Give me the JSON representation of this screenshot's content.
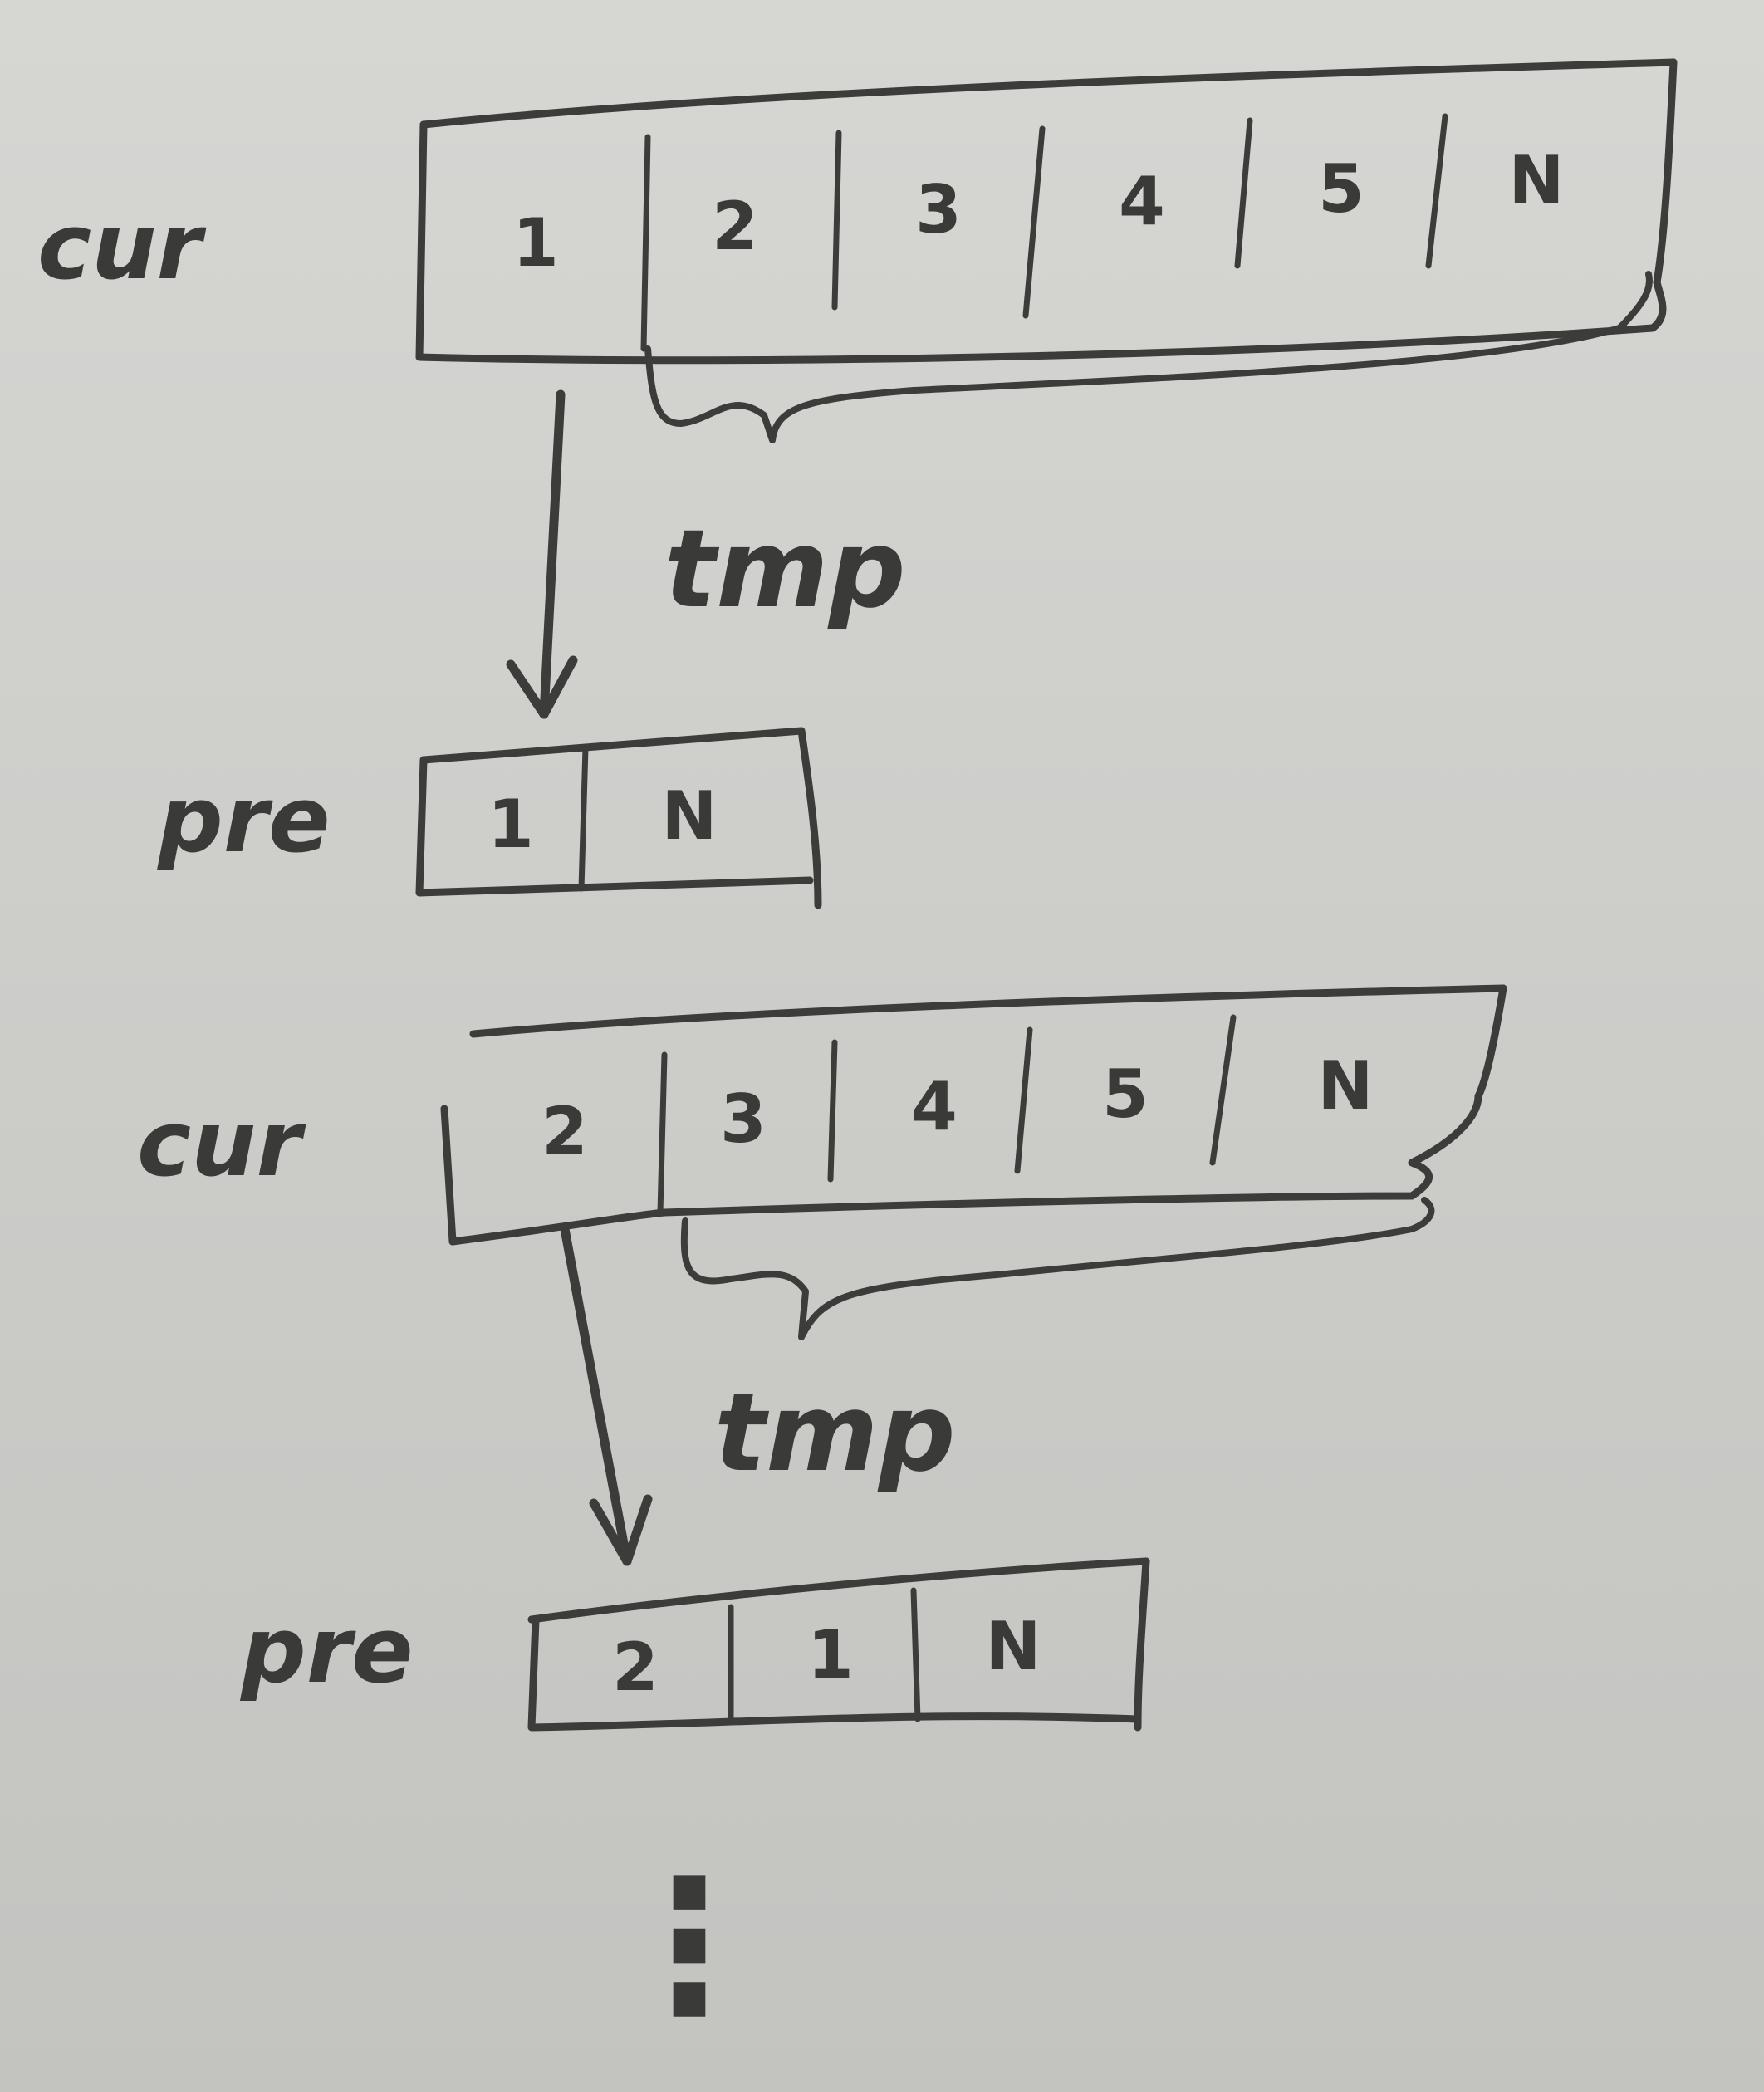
{
  "rows": [
    {
      "label": "cur",
      "cells": [
        "1",
        "2",
        "3",
        "4",
        "5",
        "N"
      ],
      "brace_label": "tmp"
    },
    {
      "label": "pre",
      "cells": [
        "1",
        "N"
      ]
    },
    {
      "label": "cur",
      "cells": [
        "2",
        "3",
        "4",
        "5",
        "N"
      ],
      "brace_label": "tmp"
    },
    {
      "label": "pre",
      "cells": [
        "2",
        "1",
        "N"
      ]
    }
  ],
  "continuation": "⋮",
  "colors": {
    "paper": "#cfcfcc",
    "pencil": "#3c3c3a"
  }
}
